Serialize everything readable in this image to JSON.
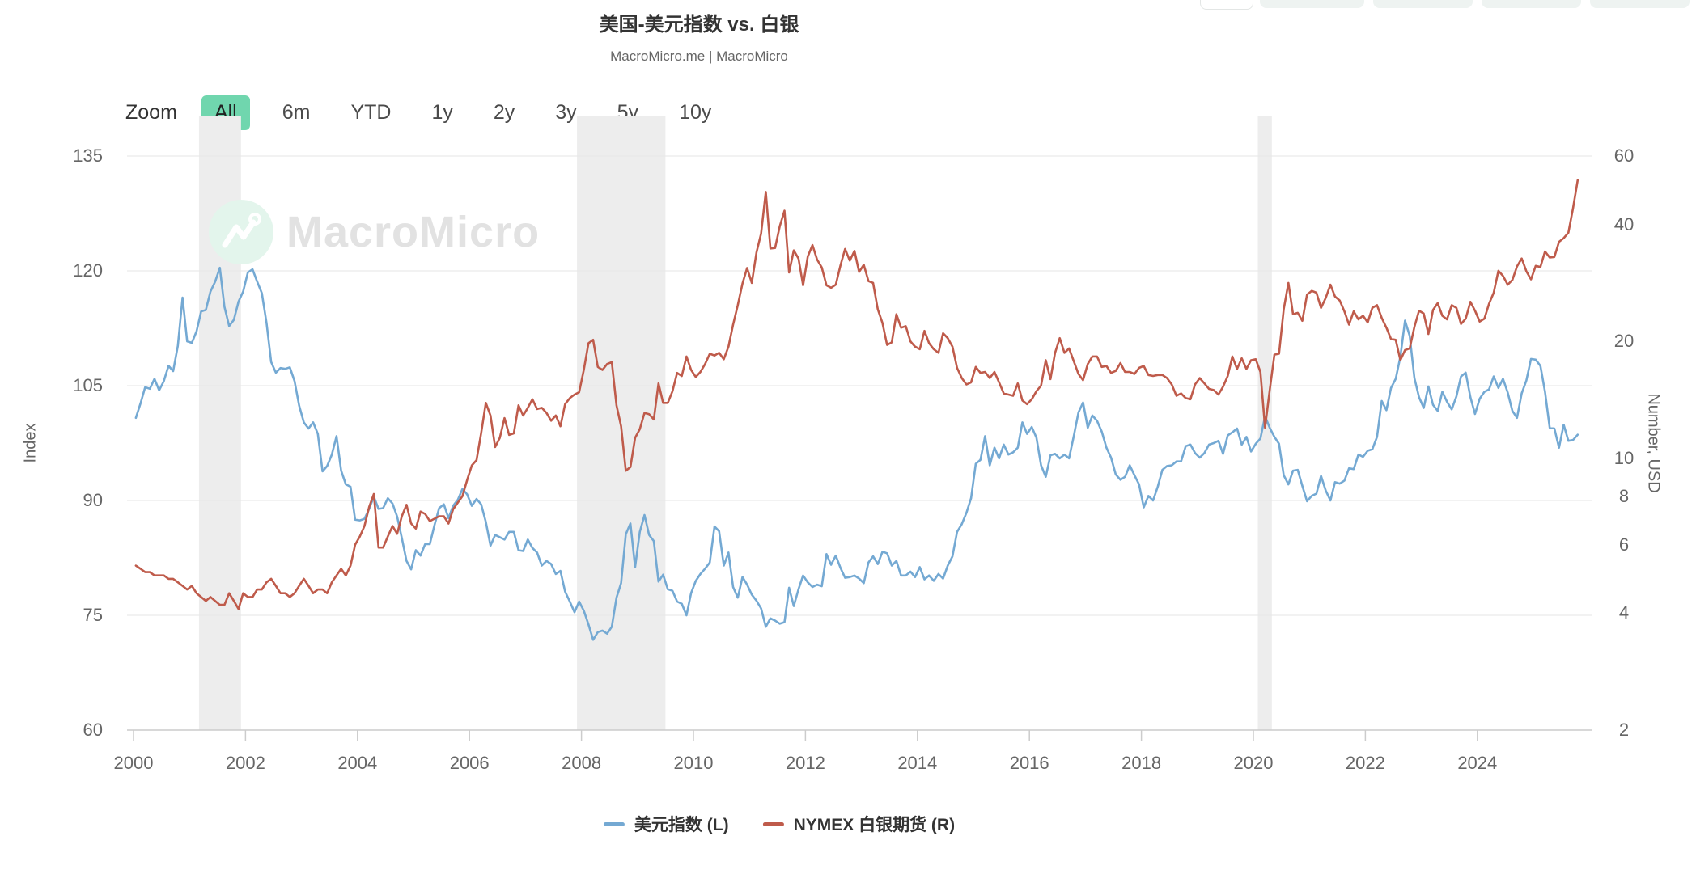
{
  "header": {
    "title": "美国-美元指数 vs. 白银",
    "subtitle": "MacroMicro.me | MacroMicro"
  },
  "top_toolbar": {
    "buttons": [
      {
        "style": "outline"
      },
      {
        "style": "tint"
      },
      {
        "style": "tint"
      },
      {
        "style": "tint"
      },
      {
        "style": "tint"
      }
    ]
  },
  "zoom_bar": {
    "label": "Zoom",
    "active_color": "#70d6ae",
    "buttons": [
      {
        "label": "All",
        "active": true
      },
      {
        "label": "6m",
        "active": false
      },
      {
        "label": "YTD",
        "active": false
      },
      {
        "label": "1y",
        "active": false
      },
      {
        "label": "2y",
        "active": false
      },
      {
        "label": "3y",
        "active": false
      },
      {
        "label": "5y",
        "active": false
      },
      {
        "label": "10y",
        "active": false
      }
    ]
  },
  "watermark": {
    "brand": "MacroMicro"
  },
  "colors": {
    "dollar_index_line": "#74a9d3",
    "silver_line": "#bf5b4b",
    "grid": "#e6e6e6",
    "axis_line": "#cccccc",
    "recession_band": "#ededed",
    "axis_text": "#666666",
    "title_text": "#333333"
  },
  "chart_data": {
    "type": "line",
    "title": "美国-美元指数 vs. 白银",
    "subtitle": "MacroMicro.me | MacroMicro",
    "grid": "horizontal",
    "legend_position": "bottom",
    "x_axis": {
      "min": 2000,
      "max": 2026.2,
      "tick_labels": [
        2000,
        2002,
        2004,
        2006,
        2008,
        2010,
        2012,
        2014,
        2016,
        2018,
        2020,
        2022,
        2024
      ]
    },
    "y_axis_left": {
      "title": "Index",
      "scale": "linear",
      "min": 60,
      "max": 135,
      "ticks": [
        60,
        75,
        90,
        105,
        120,
        135
      ]
    },
    "y_axis_right": {
      "title": "Number, USD",
      "scale": "log",
      "min": 2,
      "max": 60,
      "ticks": [
        2,
        4,
        6,
        8,
        10,
        20,
        40,
        60
      ]
    },
    "recession_bands": [
      [
        2001.17,
        2001.92
      ],
      [
        2007.92,
        2009.5
      ],
      [
        2020.08,
        2020.33
      ]
    ],
    "series": [
      {
        "name": "美元指数 (L)",
        "axis": "left",
        "color": "#74a9d3",
        "start_year": 2000,
        "frequency": "monthly",
        "values": [
          100.8,
          102.7,
          104.8,
          104.6,
          105.9,
          104.4,
          105.6,
          107.6,
          106.9,
          110.2,
          116.5,
          110.8,
          110.6,
          112.1,
          114.7,
          114.9,
          117.3,
          118.6,
          120.4,
          115.3,
          112.8,
          113.6,
          116.0,
          117.3,
          119.8,
          120.2,
          118.6,
          117.1,
          113.2,
          108.1,
          106.7,
          107.3,
          107.2,
          107.4,
          105.6,
          102.4,
          100.2,
          99.4,
          100.2,
          98.7,
          93.8,
          94.5,
          96.0,
          98.4,
          93.9,
          92.1,
          91.8,
          87.5,
          87.4,
          87.6,
          88.9,
          90.5,
          88.9,
          89.0,
          90.3,
          89.6,
          87.9,
          85.1,
          82.1,
          81.0,
          83.5,
          82.8,
          84.3,
          84.3,
          86.8,
          89.0,
          89.5,
          87.7,
          89.3,
          90.1,
          91.5,
          90.8,
          89.3,
          90.2,
          89.5,
          87.2,
          84.1,
          85.5,
          85.2,
          84.9,
          85.9,
          85.9,
          83.5,
          83.4,
          84.9,
          83.8,
          83.2,
          81.5,
          82.1,
          81.7,
          80.4,
          80.8,
          78.1,
          76.8,
          75.4,
          76.8,
          75.6,
          73.8,
          71.8,
          72.8,
          73.0,
          72.6,
          73.5,
          77.3,
          79.2,
          85.6,
          87.0,
          81.3,
          85.9,
          88.1,
          85.5,
          84.7,
          79.4,
          80.3,
          78.4,
          78.2,
          76.8,
          76.5,
          75.0,
          77.9,
          79.5,
          80.4,
          81.1,
          81.9,
          86.6,
          86.0,
          81.5,
          83.2,
          78.7,
          77.3,
          80.0,
          79.0,
          77.7,
          76.9,
          75.9,
          73.5,
          74.6,
          74.3,
          73.9,
          74.1,
          78.6,
          76.2,
          78.4,
          80.2,
          79.3,
          78.7,
          79.0,
          78.8,
          83.0,
          81.6,
          82.8,
          81.2,
          79.9,
          80.0,
          80.2,
          79.8,
          79.2,
          81.9,
          82.7,
          81.7,
          83.3,
          83.1,
          81.5,
          82.1,
          80.2,
          80.2,
          80.7,
          80.0,
          81.3,
          79.7,
          80.2,
          79.5,
          80.4,
          79.8,
          81.5,
          82.7,
          85.9,
          86.9,
          88.4,
          90.3,
          94.8,
          95.3,
          98.4,
          94.6,
          96.9,
          95.5,
          97.3,
          96.0,
          96.3,
          96.9,
          100.2,
          98.7,
          99.6,
          98.2,
          94.6,
          93.1,
          95.9,
          96.1,
          95.5,
          96.0,
          95.5,
          98.4,
          101.5,
          102.8,
          99.5,
          101.1,
          100.4,
          99.0,
          96.9,
          95.6,
          93.4,
          92.7,
          93.1,
          94.6,
          93.3,
          92.1,
          89.1,
          90.6,
          90.0,
          91.8,
          94.0,
          94.5,
          94.6,
          95.1,
          95.1,
          97.1,
          97.3,
          96.2,
          95.6,
          96.2,
          97.3,
          97.5,
          97.8,
          96.1,
          98.5,
          98.9,
          99.4,
          97.3,
          98.3,
          96.4,
          97.4,
          98.1,
          101.0,
          99.5,
          98.3,
          97.4,
          93.3,
          92.1,
          93.9,
          94.0,
          91.9,
          89.9,
          90.6,
          90.9,
          93.2,
          91.3,
          90.0,
          92.4,
          92.2,
          92.6,
          94.2,
          94.1,
          96.0,
          95.7,
          96.5,
          96.7,
          98.3,
          103.0,
          101.8,
          104.7,
          105.9,
          108.8,
          113.5,
          111.5,
          106.0,
          103.5,
          102.1,
          104.9,
          102.5,
          101.7,
          104.2,
          102.9,
          101.9,
          103.6,
          106.2,
          106.7,
          103.5,
          101.3,
          103.3,
          104.2,
          104.5,
          106.2,
          104.7,
          105.9,
          104.1,
          101.7,
          100.8,
          104.0,
          105.7,
          108.5,
          108.4,
          107.6,
          104.2,
          99.5,
          99.4,
          96.9,
          99.9,
          97.8,
          97.9,
          98.6
        ]
      },
      {
        "name": "NYMEX 白银期货 (R)",
        "axis": "right",
        "color": "#bf5b4b",
        "start_year": 2000,
        "frequency": "monthly",
        "values": [
          5.3,
          5.2,
          5.1,
          5.1,
          5.0,
          5.0,
          5.0,
          4.9,
          4.9,
          4.8,
          4.7,
          4.6,
          4.7,
          4.5,
          4.4,
          4.3,
          4.4,
          4.3,
          4.2,
          4.2,
          4.5,
          4.3,
          4.1,
          4.5,
          4.4,
          4.4,
          4.6,
          4.6,
          4.8,
          4.9,
          4.7,
          4.5,
          4.5,
          4.4,
          4.5,
          4.7,
          4.9,
          4.7,
          4.5,
          4.6,
          4.6,
          4.5,
          4.8,
          5.0,
          5.2,
          5.0,
          5.3,
          6.0,
          6.3,
          6.7,
          7.5,
          8.1,
          5.9,
          5.9,
          6.3,
          6.7,
          6.4,
          7.1,
          7.6,
          6.8,
          6.6,
          7.3,
          7.2,
          6.9,
          7.0,
          7.1,
          7.1,
          6.8,
          7.4,
          7.7,
          8.0,
          8.8,
          9.6,
          9.9,
          11.6,
          13.9,
          12.9,
          10.7,
          11.3,
          12.7,
          11.5,
          11.6,
          13.7,
          12.9,
          13.5,
          14.2,
          13.4,
          13.5,
          13.1,
          12.5,
          12.9,
          12.1,
          13.8,
          14.3,
          14.6,
          14.8,
          16.9,
          19.8,
          20.2,
          17.2,
          16.9,
          17.5,
          17.7,
          13.7,
          12.1,
          9.3,
          9.5,
          11.3,
          11.9,
          13.1,
          13.0,
          12.6,
          15.6,
          13.9,
          13.9,
          14.9,
          16.6,
          16.3,
          18.3,
          16.9,
          16.2,
          16.7,
          17.5,
          18.6,
          18.4,
          18.7,
          18.0,
          19.4,
          22.1,
          24.8,
          28.2,
          30.9,
          28.3,
          33.9,
          37.9,
          48.5,
          34.7,
          34.8,
          39.6,
          43.4,
          30.1,
          34.3,
          32.7,
          27.9,
          33.1,
          35.4,
          32.5,
          31.0,
          27.9,
          27.5,
          28.0,
          31.4,
          34.6,
          32.3,
          34.2,
          30.2,
          31.5,
          28.6,
          28.3,
          24.2,
          22.3,
          19.6,
          19.9,
          23.5,
          21.7,
          21.9,
          20.0,
          19.4,
          19.1,
          21.3,
          19.8,
          19.1,
          18.7,
          21.0,
          20.4,
          19.4,
          17.1,
          16.1,
          15.5,
          15.7,
          17.2,
          16.6,
          16.7,
          16.1,
          16.7,
          15.7,
          14.7,
          14.6,
          14.5,
          15.6,
          14.1,
          13.8,
          14.2,
          14.9,
          15.4,
          17.9,
          16.0,
          18.7,
          20.4,
          18.7,
          19.2,
          17.8,
          16.5,
          15.9,
          17.5,
          18.3,
          18.3,
          17.2,
          17.3,
          16.6,
          16.8,
          17.6,
          16.7,
          16.7,
          16.5,
          17.1,
          17.3,
          16.4,
          16.3,
          16.4,
          16.4,
          16.1,
          15.5,
          14.5,
          14.7,
          14.3,
          14.2,
          15.5,
          16.1,
          15.6,
          15.1,
          15.0,
          14.6,
          15.3,
          16.3,
          18.3,
          17.0,
          18.1,
          17.0,
          17.9,
          18.0,
          16.7,
          12.0,
          15.0,
          18.5,
          18.6,
          24.2,
          28.3,
          23.5,
          23.7,
          22.6,
          26.4,
          27.0,
          26.7,
          24.4,
          25.9,
          28.0,
          26.1,
          25.5,
          23.9,
          22.1,
          23.9,
          22.8,
          23.3,
          22.4,
          24.4,
          24.8,
          23.0,
          21.7,
          20.3,
          20.2,
          17.9,
          19.0,
          19.2,
          21.8,
          24.0,
          23.6,
          20.9,
          24.1,
          25.1,
          23.3,
          22.8,
          24.8,
          24.4,
          22.2,
          22.9,
          25.3,
          24.0,
          22.5,
          22.9,
          25.0,
          26.7,
          30.4,
          29.5,
          28.0,
          28.8,
          31.2,
          32.7,
          30.3,
          28.9,
          31.3,
          31.1,
          34.1,
          32.9,
          33.0,
          36.1,
          36.9,
          38.1,
          44.0,
          52.0
        ]
      }
    ]
  }
}
